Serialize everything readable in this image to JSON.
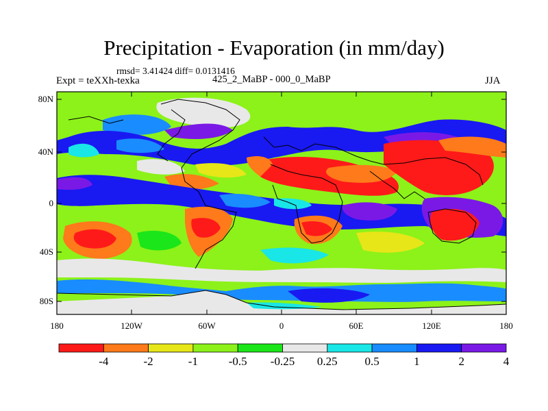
{
  "title": "Precipitation - Evaporation (in mm/day)",
  "stats_text": "rmsd= 3.41424 diff= 0.0131416",
  "left_label": "Expt = teXXh-texka",
  "center_label": "425_2_MaBP - 000_0_MaBP",
  "right_label": "JJA",
  "lat_ticks": [
    "80N",
    "40N",
    "0",
    "40S",
    "80S"
  ],
  "lon_ticks": [
    "180",
    "120W",
    "60W",
    "0",
    "60E",
    "120E",
    "180"
  ],
  "colorbar": {
    "colors": [
      "#ff1a1a",
      "#ff7a1a",
      "#e6e619",
      "#8cf219",
      "#1ae619",
      "#e8e8e8",
      "#19e6e6",
      "#198cff",
      "#1919f2",
      "#7a19e6"
    ],
    "labels": [
      "-4",
      "-2",
      "-1",
      "-0.5",
      "-0.25",
      "0.25",
      "0.5",
      "1",
      "2",
      "4"
    ]
  },
  "palette": {
    "red": "#ff1a1a",
    "orange": "#ff7a1a",
    "yellow": "#e6e619",
    "lightgreen": "#8cf219",
    "green": "#1ae619",
    "white": "#e8e8e8",
    "cyan": "#19e6e6",
    "lightblue": "#198cff",
    "blue": "#1919f2",
    "purple": "#7a19e6"
  }
}
